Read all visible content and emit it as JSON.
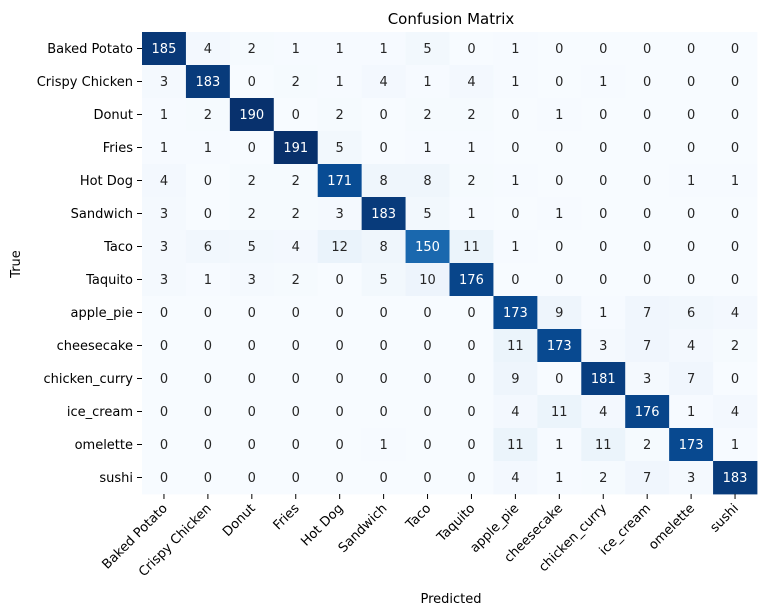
{
  "chart_data": {
    "type": "heatmap",
    "title": "Confusion Matrix",
    "xlabel": "Predicted",
    "ylabel": "True",
    "labels": [
      "Baked Potato",
      "Crispy Chicken",
      "Donut",
      "Fries",
      "Hot Dog",
      "Sandwich",
      "Taco",
      "Taquito",
      "apple_pie",
      "cheesecake",
      "chicken_curry",
      "ice_cream",
      "omelette",
      "sushi"
    ],
    "matrix": [
      [
        185,
        4,
        2,
        1,
        1,
        1,
        5,
        0,
        1,
        0,
        0,
        0,
        0,
        0
      ],
      [
        3,
        183,
        0,
        2,
        1,
        4,
        1,
        4,
        1,
        0,
        1,
        0,
        0,
        0
      ],
      [
        1,
        2,
        190,
        0,
        2,
        0,
        2,
        2,
        0,
        1,
        0,
        0,
        0,
        0
      ],
      [
        1,
        1,
        0,
        191,
        5,
        0,
        1,
        1,
        0,
        0,
        0,
        0,
        0,
        0
      ],
      [
        4,
        0,
        2,
        2,
        171,
        8,
        8,
        2,
        1,
        0,
        0,
        0,
        1,
        1
      ],
      [
        3,
        0,
        2,
        2,
        3,
        183,
        5,
        1,
        0,
        1,
        0,
        0,
        0,
        0
      ],
      [
        3,
        6,
        5,
        4,
        12,
        8,
        150,
        11,
        1,
        0,
        0,
        0,
        0,
        0
      ],
      [
        3,
        1,
        3,
        2,
        0,
        5,
        10,
        176,
        0,
        0,
        0,
        0,
        0,
        0
      ],
      [
        0,
        0,
        0,
        0,
        0,
        0,
        0,
        0,
        173,
        9,
        1,
        7,
        6,
        4
      ],
      [
        0,
        0,
        0,
        0,
        0,
        0,
        0,
        0,
        11,
        173,
        3,
        7,
        4,
        2
      ],
      [
        0,
        0,
        0,
        0,
        0,
        0,
        0,
        0,
        9,
        0,
        181,
        3,
        7,
        0
      ],
      [
        0,
        0,
        0,
        0,
        0,
        0,
        0,
        0,
        4,
        11,
        4,
        176,
        1,
        4
      ],
      [
        0,
        0,
        0,
        0,
        0,
        1,
        0,
        0,
        11,
        1,
        11,
        2,
        173,
        1
      ],
      [
        0,
        0,
        0,
        0,
        0,
        0,
        0,
        0,
        4,
        1,
        2,
        7,
        3,
        183
      ]
    ],
    "colormap": "Blues",
    "color_range": [
      0,
      191
    ],
    "colorbar": false,
    "grid": false
  }
}
